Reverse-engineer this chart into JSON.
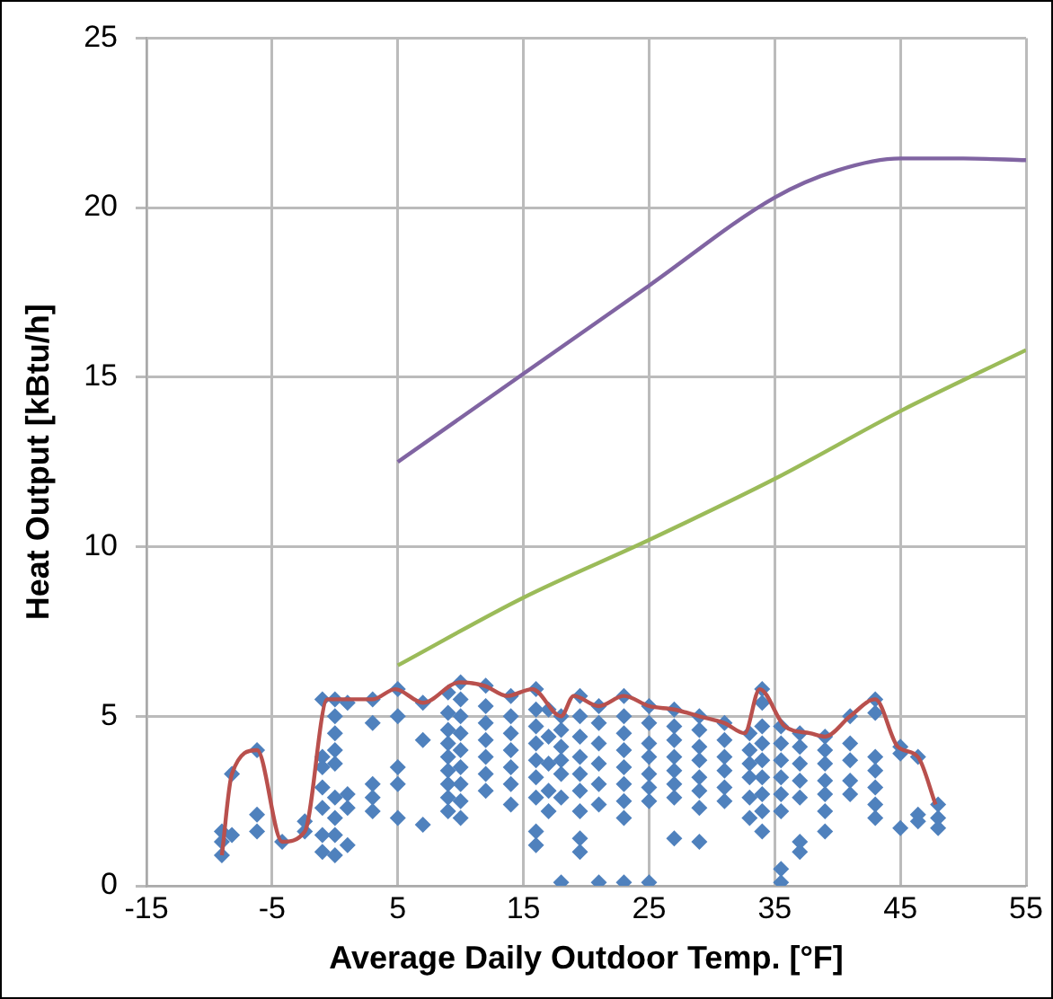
{
  "chart_data": {
    "type": "scatter",
    "xlabel": "Average Daily Outdoor Temp. [°F]",
    "ylabel": "Heat Output [kBtu/h]",
    "xlim": [
      -15,
      55
    ],
    "xticks": [
      -15,
      -5,
      5,
      15,
      25,
      35,
      45,
      55
    ],
    "ylim": [
      0,
      25
    ],
    "yticks": [
      0,
      5,
      10,
      15,
      20,
      25
    ],
    "grid": true,
    "legend": false,
    "series": [
      {
        "type": "scatter",
        "color": "#4f81bd",
        "marker": "diamond",
        "x": [
          -9,
          -9,
          -9,
          -8.2,
          -8.2,
          -6.2,
          -6.2,
          -6.2,
          -4.2,
          -2.4,
          -2.4,
          -1,
          -1,
          -1,
          -1,
          -1,
          -1,
          -1,
          0,
          0,
          0,
          0,
          0,
          0,
          0,
          0,
          0,
          1,
          1,
          1,
          1,
          3,
          3,
          3,
          3,
          3,
          5,
          5,
          5,
          5,
          5,
          7,
          7,
          7,
          9,
          9,
          9,
          9,
          9,
          9,
          9,
          9,
          9,
          10,
          10,
          10,
          10,
          10,
          10,
          10,
          10,
          10,
          12,
          12,
          12,
          12,
          12,
          12,
          12,
          14,
          14,
          14,
          14,
          14,
          14,
          14,
          16,
          16,
          16,
          16,
          16,
          16,
          16,
          16,
          16,
          17,
          17,
          17,
          17,
          17,
          18,
          18,
          18,
          18,
          18,
          18,
          18,
          19.5,
          19.5,
          19.5,
          19.5,
          19.5,
          19.5,
          19.5,
          19.5,
          19.5,
          21,
          21,
          21,
          21,
          21,
          21,
          21,
          23,
          23,
          23,
          23,
          23,
          23,
          23,
          23,
          23,
          25,
          25,
          25,
          25,
          25,
          25,
          25,
          25,
          27,
          27,
          27,
          27,
          27,
          27,
          27,
          27,
          29,
          29,
          29,
          29,
          29,
          29,
          29,
          29,
          31,
          31,
          31,
          31,
          31,
          31,
          33,
          33,
          33,
          33,
          33,
          33,
          34,
          34,
          34,
          34,
          34,
          34,
          34,
          34,
          34,
          35.5,
          35.5,
          35.5,
          35.5,
          35.5,
          35.5,
          35.5,
          35.5,
          37,
          37,
          37,
          37,
          37,
          37,
          37,
          39,
          39,
          39,
          39,
          39,
          39,
          39,
          41,
          41,
          41,
          41,
          41,
          43,
          43,
          43,
          43,
          43,
          43,
          43,
          45,
          45,
          45,
          46.4,
          46.4,
          46.4,
          48,
          48,
          48
        ],
        "values": [
          0.9,
          1.3,
          1.6,
          3.3,
          1.5,
          4.0,
          2.1,
          1.6,
          1.3,
          1.6,
          1.9,
          5.5,
          3.8,
          3.5,
          2.9,
          2.3,
          1.5,
          1.0,
          5.5,
          5.0,
          4.5,
          4.0,
          3.6,
          2.6,
          2.0,
          1.5,
          0.9,
          5.4,
          2.7,
          2.3,
          1.2,
          5.5,
          4.8,
          3.0,
          2.6,
          2.2,
          5.8,
          5.0,
          3.5,
          3.0,
          2.0,
          5.4,
          4.3,
          1.8,
          5.7,
          5.1,
          4.6,
          4.2,
          3.8,
          3.4,
          3.0,
          2.6,
          2.2,
          6.0,
          5.5,
          5.0,
          4.5,
          4.0,
          3.5,
          3.0,
          2.5,
          2.0,
          5.9,
          5.3,
          4.8,
          4.3,
          3.8,
          3.3,
          2.8,
          5.6,
          5.0,
          4.5,
          4.0,
          3.5,
          3.0,
          2.4,
          5.8,
          5.2,
          4.7,
          4.2,
          3.7,
          3.2,
          2.6,
          1.6,
          1.2,
          5.2,
          4.4,
          3.6,
          2.8,
          2.2,
          5.0,
          4.6,
          4.1,
          3.7,
          3.3,
          2.6,
          0.1,
          5.6,
          5.0,
          4.4,
          3.8,
          3.3,
          2.8,
          2.2,
          1.4,
          1.0,
          5.3,
          4.8,
          4.2,
          3.6,
          3.0,
          2.4,
          0.1,
          5.6,
          5.0,
          4.5,
          4.0,
          3.5,
          3.0,
          2.5,
          2.0,
          0.1,
          5.3,
          4.8,
          4.2,
          3.8,
          3.3,
          2.9,
          2.5,
          0.1,
          5.2,
          4.7,
          4.3,
          3.8,
          3.4,
          3.0,
          2.6,
          1.4,
          5.0,
          4.6,
          4.1,
          3.7,
          3.2,
          2.8,
          2.3,
          1.3,
          4.8,
          4.3,
          3.8,
          3.4,
          2.9,
          2.5,
          4.5,
          4.0,
          3.6,
          3.2,
          2.6,
          2.0,
          5.8,
          5.4,
          4.7,
          4.2,
          3.7,
          3.2,
          2.7,
          2.2,
          1.6,
          4.7,
          4.2,
          3.7,
          3.2,
          2.7,
          2.2,
          0.5,
          0.1,
          4.5,
          4.1,
          3.6,
          3.1,
          2.6,
          1.3,
          1.0,
          4.4,
          4.0,
          3.6,
          3.1,
          2.7,
          2.2,
          1.6,
          5.0,
          4.2,
          3.7,
          3.1,
          2.7,
          5.5,
          5.1,
          3.8,
          3.4,
          2.9,
          2.4,
          2.0,
          4.1,
          3.9,
          1.7,
          3.8,
          2.1,
          1.9,
          2.4,
          2.0,
          1.7
        ]
      },
      {
        "type": "line",
        "color": "#b9504d",
        "marker": "none",
        "x": [
          -9,
          -8.2,
          -6.2,
          -4.2,
          -2.4,
          -0.6,
          3,
          4.8,
          7,
          9.9,
          11.9,
          13.7,
          15.7,
          18,
          19,
          21,
          23,
          25,
          27,
          29,
          31,
          32.6,
          33.8,
          35.8,
          37.8,
          39,
          41,
          43,
          44.8,
          46.4,
          47.8
        ],
        "values": [
          0.9,
          3.3,
          4.0,
          1.3,
          1.6,
          5.5,
          5.5,
          5.8,
          5.4,
          6.0,
          5.9,
          5.6,
          5.8,
          5.0,
          5.6,
          5.3,
          5.6,
          5.3,
          5.2,
          5.0,
          4.8,
          4.5,
          5.8,
          4.7,
          4.5,
          4.4,
          5.0,
          5.5,
          4.1,
          3.8,
          2.4
        ]
      },
      {
        "type": "line",
        "color": "#8064a2",
        "marker": "none",
        "x": [
          5,
          15,
          25,
          35,
          40,
          45,
          50,
          55
        ],
        "values": [
          12.5,
          15.1,
          17.7,
          20.3,
          21.1,
          21.45,
          21.45,
          21.4
        ]
      },
      {
        "type": "line",
        "color": "#9bbb59",
        "marker": "none",
        "x": [
          5,
          15,
          25,
          35,
          45,
          55
        ],
        "values": [
          6.5,
          8.5,
          10.2,
          12.0,
          14.0,
          15.8
        ]
      }
    ]
  }
}
